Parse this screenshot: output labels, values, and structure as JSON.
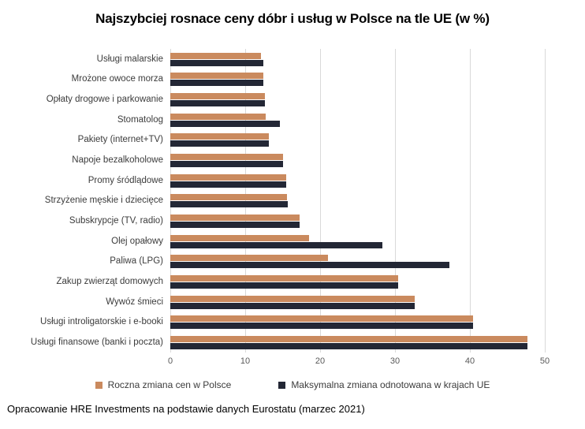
{
  "title": "Najszybciej rosnace ceny dóbr i usług w Polsce na tle UE (w %)",
  "footer": "Opracowanie HRE Investments na podstawie danych Eurostatu (marzec 2021)",
  "colors": {
    "poland_bar": "#CA8A5E",
    "eu_max_bar": "#232735",
    "gridline": "#D9D9D9",
    "tick_text": "#595959",
    "label_text": "#3B3B3B"
  },
  "legend": [
    {
      "label": "Roczna zmiana cen w Polsce",
      "color": "#CA8A5E"
    },
    {
      "label": "Maksymalna zmiana odnotowana w krajach UE",
      "color": "#232735"
    }
  ],
  "chart_data": {
    "type": "bar",
    "orientation": "horizontal",
    "title": "Najszybciej rosnace ceny dóbr i usług w Polsce na tle UE (w %)",
    "xlabel": "",
    "ylabel": "",
    "xlim": [
      0,
      50
    ],
    "xticks": [
      0,
      10,
      20,
      30,
      40,
      50
    ],
    "grid": true,
    "legend_position": "bottom",
    "categories": [
      "Usługi malarskie",
      "Mrożone owoce morza",
      "Opłaty drogowe i parkowanie",
      "Stomatolog",
      "Pakiety (internet+TV)",
      "Napoje bezalkoholowe",
      "Promy śródlądowe",
      "Strzyżenie męskie i dziecięce",
      "Subskrypcje (TV, radio)",
      "Olej opałowy",
      "Paliwa (LPG)",
      "Zakup zwierząt domowych",
      "Wywóz śmieci",
      "Usługi introligatorskie i e-booki",
      "Usługi finansowe (banki i poczta)"
    ],
    "series": [
      {
        "name": "Roczna zmiana cen w Polsce",
        "color": "#CA8A5E",
        "values": [
          12.1,
          12.4,
          12.6,
          12.7,
          13.2,
          15.0,
          15.5,
          15.6,
          17.3,
          18.5,
          21.0,
          30.4,
          32.6,
          40.4,
          47.7
        ]
      },
      {
        "name": "Maksymalna zmiana odnotowana w krajach UE",
        "color": "#232735",
        "values": [
          12.4,
          12.4,
          12.6,
          14.6,
          13.2,
          15.0,
          15.5,
          15.7,
          17.3,
          28.3,
          37.3,
          30.4,
          32.6,
          40.4,
          47.7
        ]
      }
    ]
  }
}
